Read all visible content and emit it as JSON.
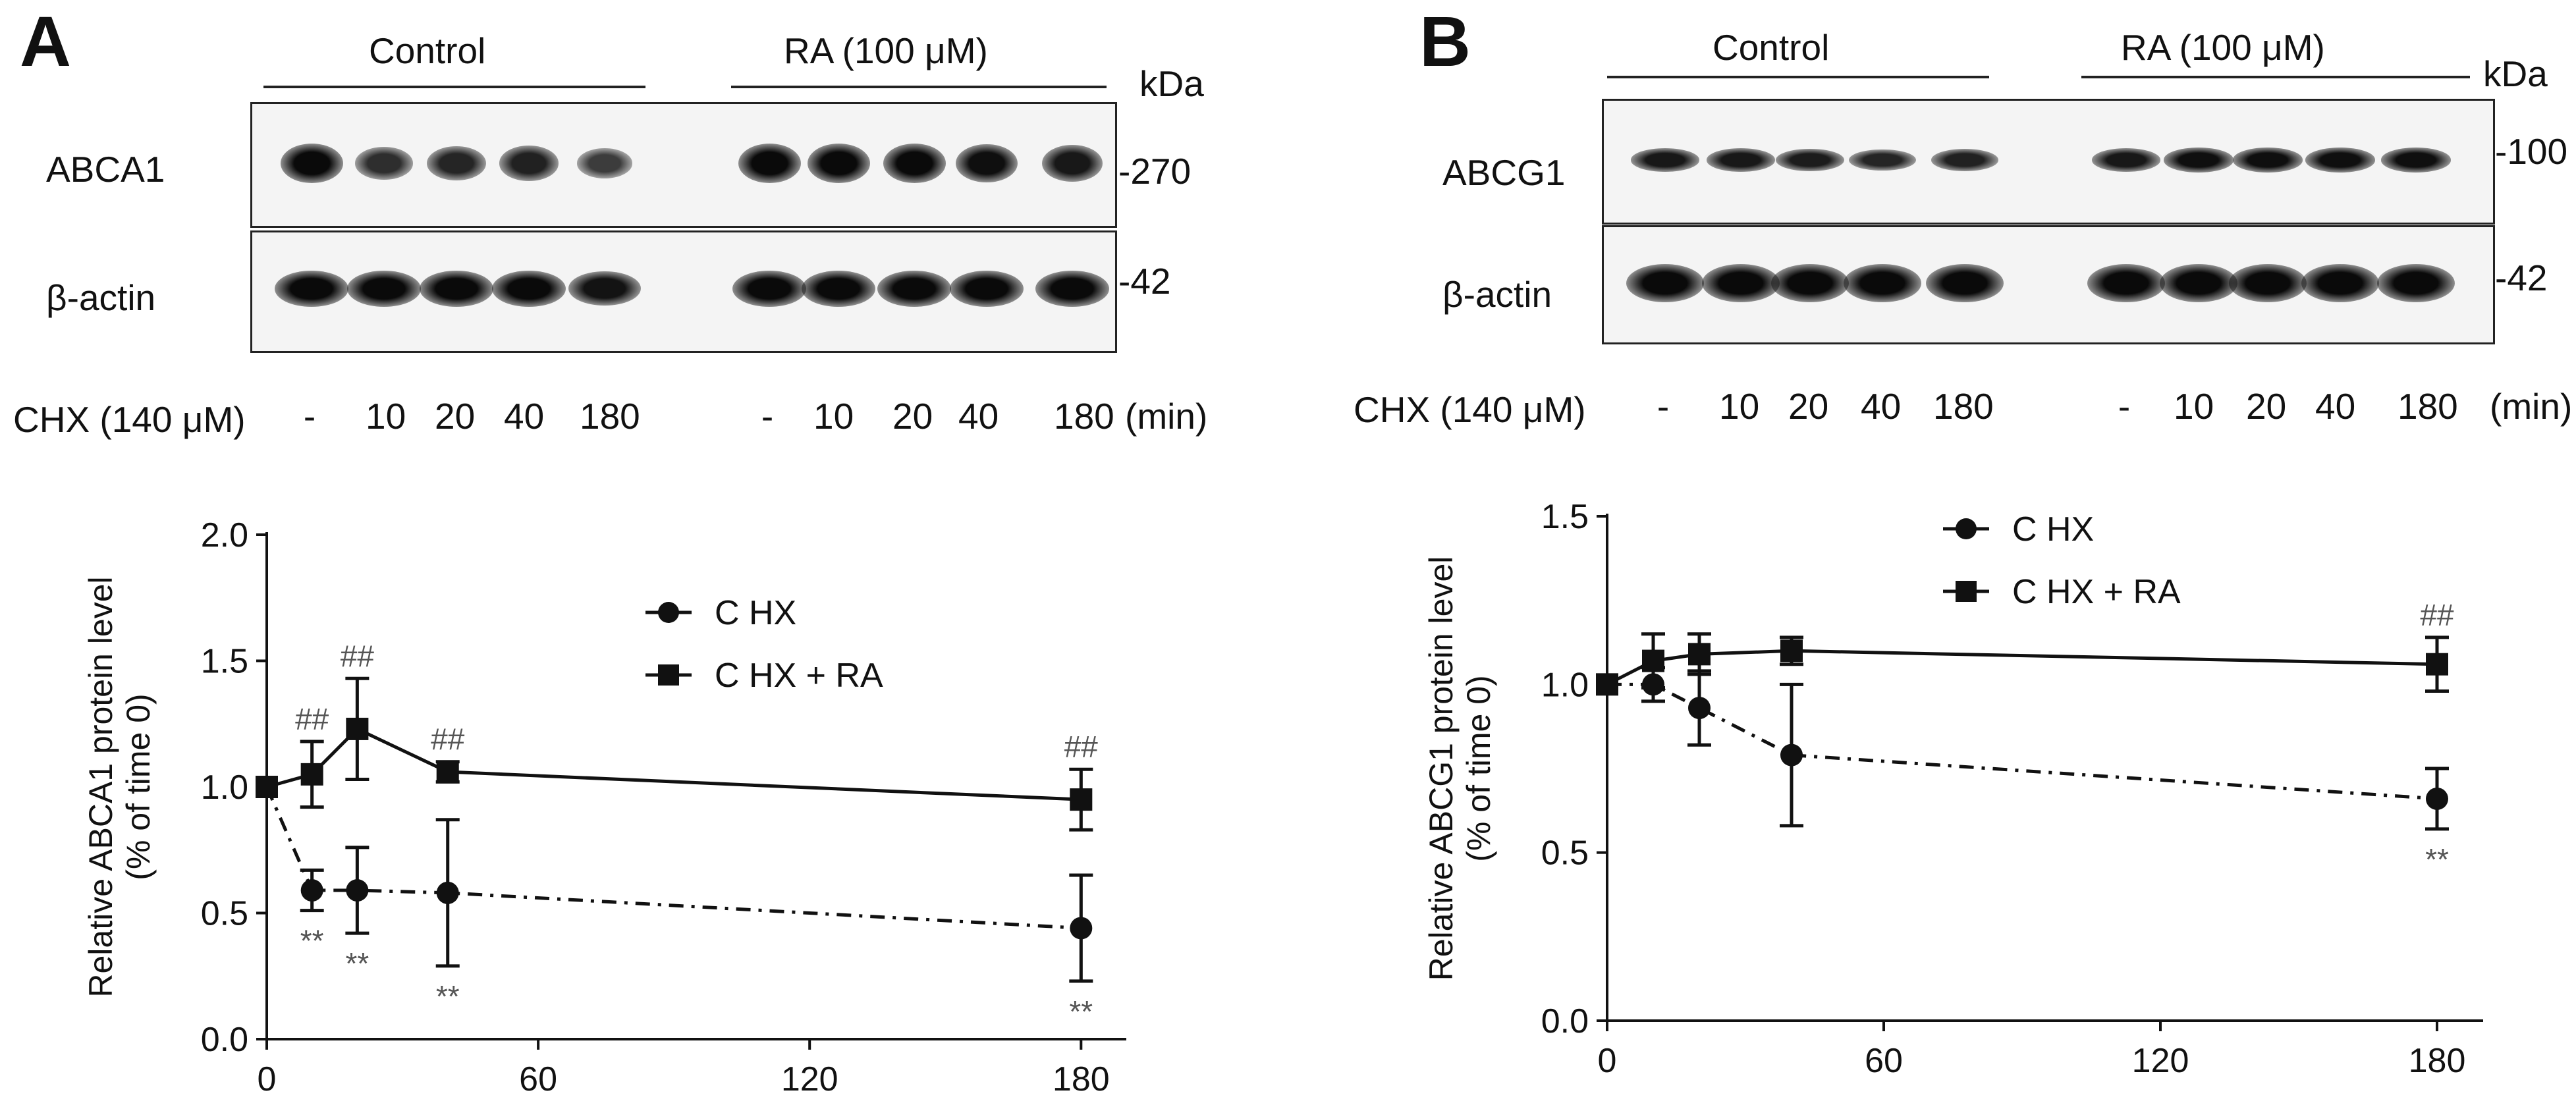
{
  "panelA": {
    "letter": "A",
    "control_label": "Control",
    "ra_label": "RA (100 μM)",
    "kda_label": "kDa",
    "protein_label": "ABCA1",
    "actin_label": "β-actin",
    "marker_top": "-270",
    "marker_actin": "-42",
    "chx_label": "CHX (140 μM)",
    "time_labels": [
      "-",
      "10",
      "20",
      "40",
      "180",
      "-",
      "10",
      "20",
      "40",
      "180"
    ],
    "min_label": "(min)",
    "band_intensity_control": [
      1.0,
      0.6,
      0.7,
      0.75,
      0.45
    ],
    "band_intensity_ra": [
      1.0,
      1.0,
      1.0,
      0.95,
      0.85
    ]
  },
  "panelB": {
    "letter": "B",
    "control_label": "Control",
    "ra_label": "RA (100 μM)",
    "kda_label": "kDa",
    "protein_label": "ABCG1",
    "actin_label": "β-actin",
    "marker_top": "-100",
    "marker_actin": "-42",
    "chx_label": "CHX (140 μM)",
    "time_labels": [
      "-",
      "10",
      "20",
      "40",
      "180",
      "-",
      "10",
      "20",
      "40",
      "180"
    ],
    "min_label": "(min)",
    "band_intensity_control": [
      0.85,
      0.85,
      0.8,
      0.7,
      0.75
    ],
    "band_intensity_ra": [
      0.85,
      0.95,
      0.95,
      0.95,
      0.95
    ]
  },
  "chart_data": [
    {
      "type": "line",
      "ylabel_line1": "Relative ABCA1 protein level",
      "ylabel_line2": "(% of time 0)",
      "xlim": [
        0,
        190
      ],
      "ylim": [
        0,
        2.0
      ],
      "xticks": [
        0,
        60,
        120,
        180
      ],
      "yticks": [
        0.0,
        0.5,
        1.0,
        1.5,
        2.0
      ],
      "ytick_labels": [
        "0.0",
        "0.5",
        "1.0",
        "1.5",
        "2.0"
      ],
      "series": [
        {
          "name": "C HX",
          "marker": "circle",
          "linestyle": "dashdot",
          "x": [
            0,
            10,
            20,
            40,
            180
          ],
          "y": [
            1.0,
            0.59,
            0.59,
            0.58,
            0.44
          ],
          "err": [
            0,
            0.08,
            0.17,
            0.29,
            0.21
          ],
          "annotations": [
            "",
            "**",
            "**",
            "**",
            "**"
          ]
        },
        {
          "name": "C HX + RA",
          "marker": "square",
          "linestyle": "solid",
          "x": [
            0,
            10,
            20,
            40,
            180
          ],
          "y": [
            1.0,
            1.05,
            1.23,
            1.06,
            0.95
          ],
          "err": [
            0,
            0.13,
            0.2,
            0.04,
            0.12
          ],
          "annotations": [
            "",
            "##",
            "##",
            "##",
            "##"
          ]
        }
      ],
      "legend": [
        "C HX",
        "C HX + RA"
      ]
    },
    {
      "type": "line",
      "ylabel_line1": "Relative ABCG1 protein level",
      "ylabel_line2": "(% of time 0)",
      "xlim": [
        0,
        190
      ],
      "ylim": [
        0,
        1.5
      ],
      "xticks": [
        0,
        60,
        120,
        180
      ],
      "yticks": [
        0.0,
        0.5,
        1.0,
        1.5
      ],
      "ytick_labels": [
        "0.0",
        "0.5",
        "1.0",
        "1.5"
      ],
      "series": [
        {
          "name": "C HX",
          "marker": "circle",
          "linestyle": "dashdot",
          "x": [
            0,
            10,
            20,
            40,
            180
          ],
          "y": [
            1.0,
            1.0,
            0.93,
            0.79,
            0.66
          ],
          "err": [
            0,
            0.05,
            0.11,
            0.21,
            0.09
          ],
          "annotations": [
            "",
            "",
            "",
            "",
            "**"
          ]
        },
        {
          "name": "C HX + RA",
          "marker": "square",
          "linestyle": "solid",
          "x": [
            0,
            10,
            20,
            40,
            180
          ],
          "y": [
            1.0,
            1.07,
            1.09,
            1.1,
            1.06
          ],
          "err": [
            0,
            0.08,
            0.06,
            0.04,
            0.08
          ],
          "annotations": [
            "",
            "",
            "",
            "",
            "##"
          ]
        }
      ],
      "legend": [
        "C HX",
        "C HX + RA"
      ]
    }
  ]
}
